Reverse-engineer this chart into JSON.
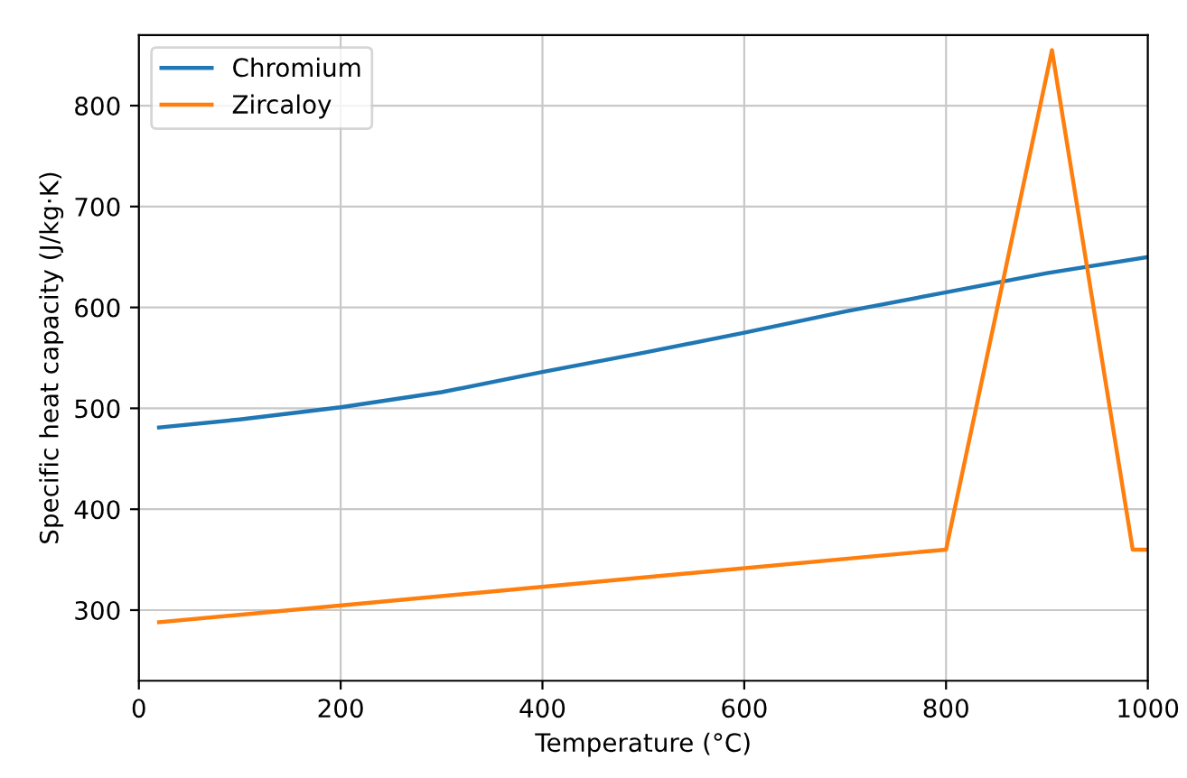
{
  "chart_data": {
    "type": "line",
    "xlabel": "Temperature (°C)",
    "ylabel": "Specific heat capacity (J/kg·K)",
    "series": [
      {
        "name": "Chromium",
        "color": "#1f77b4",
        "x": [
          20,
          100,
          200,
          300,
          400,
          500,
          600,
          700,
          800,
          900,
          1000
        ],
        "values": [
          481,
          489,
          501,
          516,
          536,
          555,
          575,
          596,
          615,
          634,
          650
        ]
      },
      {
        "name": "Zircaloy",
        "color": "#ff7f0e",
        "x": [
          20,
          800,
          905,
          985,
          1000
        ],
        "values": [
          288,
          360,
          855,
          360,
          360
        ]
      }
    ],
    "xlim": [
      0,
      1000
    ],
    "xticks": [
      0,
      200,
      400,
      600,
      800,
      1000
    ],
    "ylim": [
      230,
      870
    ],
    "yticks": [
      300,
      400,
      500,
      600,
      700,
      800
    ],
    "grid": true,
    "legend": "top left"
  }
}
